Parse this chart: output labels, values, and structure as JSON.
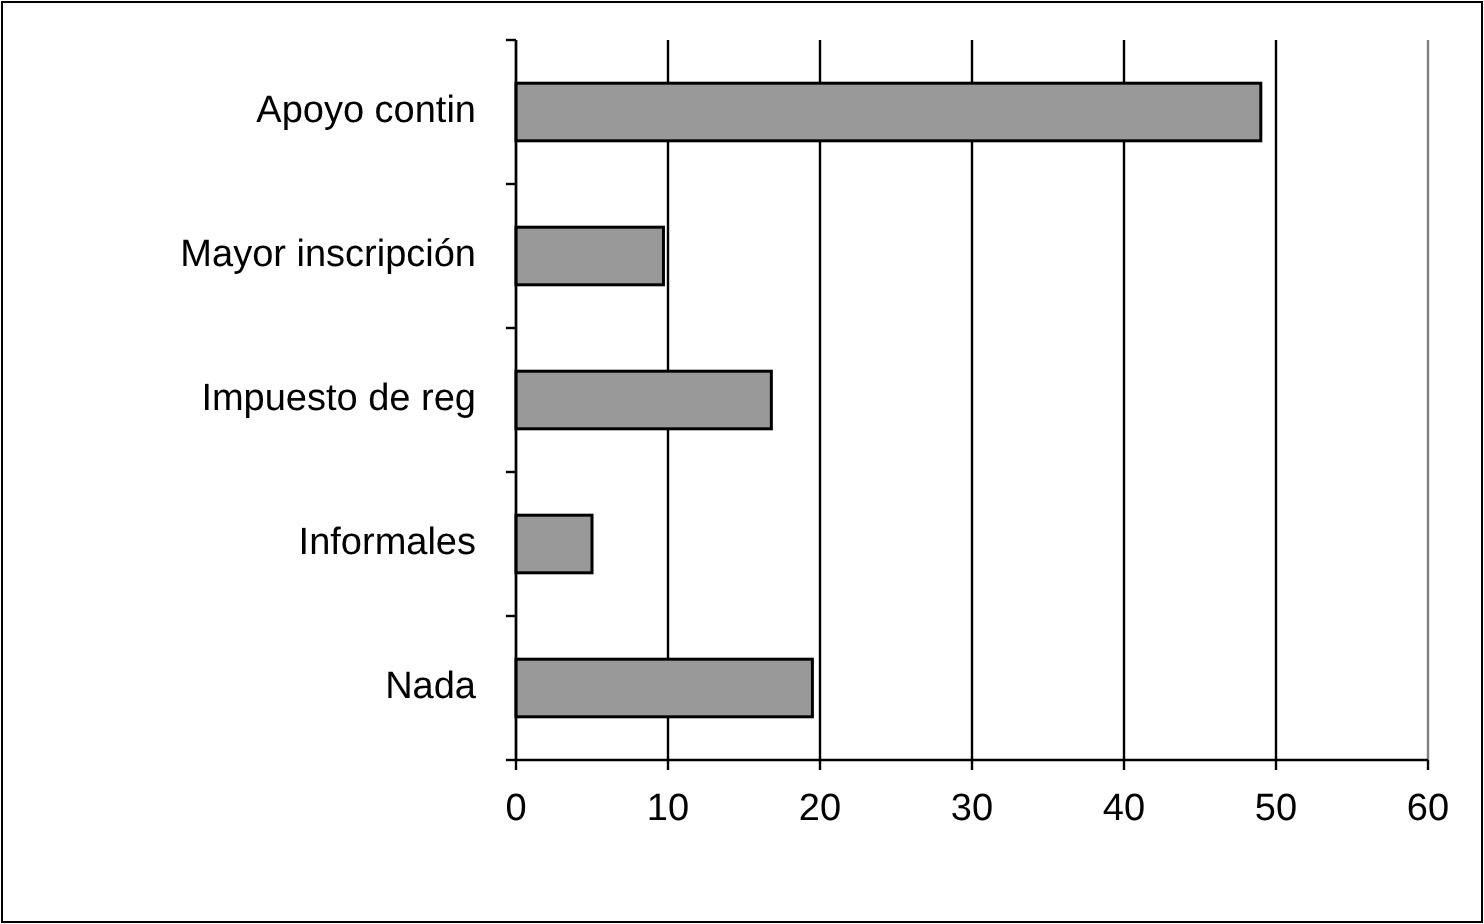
{
  "chart_data": {
    "type": "bar",
    "orientation": "horizontal",
    "categories": [
      "Apoyo contin",
      "Mayor inscripción",
      "Impuesto de reg",
      "Informales",
      "Nada"
    ],
    "values": [
      49,
      9.7,
      16.8,
      5,
      19.5
    ],
    "color": "#999999",
    "xlim": [
      0,
      60
    ],
    "xticks": [
      0,
      10,
      20,
      30,
      40,
      50,
      60
    ],
    "grid": "x"
  }
}
